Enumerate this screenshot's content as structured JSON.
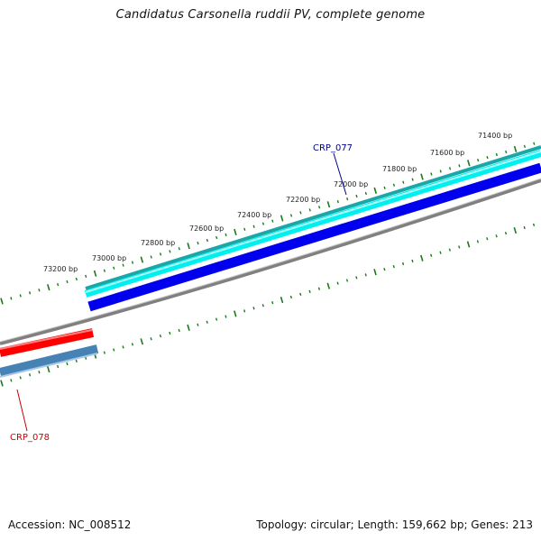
{
  "title": "Candidatus Carsonella ruddii PV, complete genome",
  "footer": {
    "accession_label": "Accession:",
    "accession": "NC_008512",
    "topology_label": "Topology:",
    "topology": "circular",
    "length_label": "Length:",
    "length": "159,662 bp",
    "genes_label": "Genes:",
    "genes": "213"
  },
  "ruler": {
    "labels": [
      "71400 bp",
      "71600 bp",
      "71800 bp",
      "72000 bp",
      "72200 bp",
      "72400 bp",
      "72600 bp",
      "72800 bp",
      "73000 bp",
      "73200 bp"
    ],
    "tick_color": "#1a7a1a"
  },
  "genes": [
    {
      "label": "CRP_077",
      "strand": "forward",
      "color": "#00008b",
      "fill_colors": [
        "#1aa7a7",
        "#00ffff",
        "#0000ee"
      ]
    },
    {
      "label": "CRP_078",
      "strand": "reverse",
      "color": "#cc0000",
      "fill_colors": [
        "#ff0000",
        "#4682b4"
      ]
    }
  ],
  "colors": {
    "backbone": "#808080",
    "forward_outer": "#20b2aa",
    "forward_inner": "#00ffff",
    "forward_cds": "#0000ee",
    "reverse_outer": "#ff0000",
    "reverse_inner": "#4682b4",
    "label_077": "#00008b",
    "label_078": "#cc0000"
  }
}
